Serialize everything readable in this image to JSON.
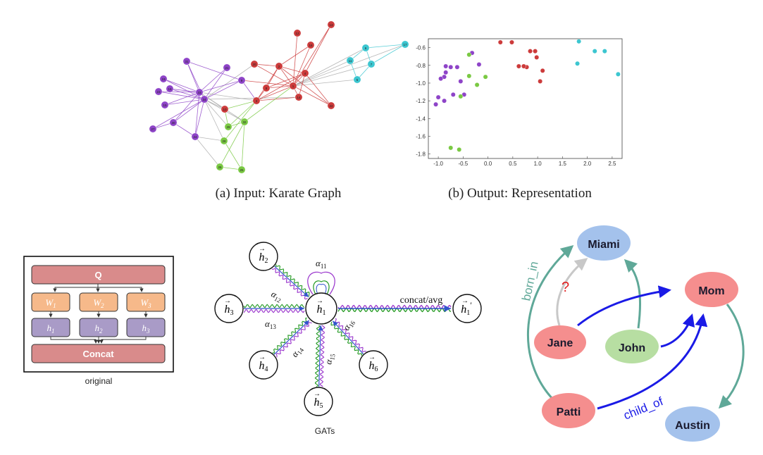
{
  "captions": {
    "karate_input": "(a) Input: Karate Graph",
    "karate_output": "(b) Output: Representation",
    "original": "original",
    "gats": "GATs"
  },
  "karate_graph": {
    "colors": {
      "purple": "#8e44c8",
      "red": "#cc3b3b",
      "green": "#7ac943",
      "cyan": "#3cc6d0",
      "gray": "#aaaaaa"
    },
    "nodes": [
      {
        "id": "13",
        "color": "red"
      },
      {
        "id": "12",
        "color": "red"
      },
      {
        "id": "18",
        "color": "red"
      },
      {
        "id": "20",
        "color": "red"
      },
      {
        "id": "2",
        "color": "red"
      },
      {
        "id": "4",
        "color": "red"
      },
      {
        "id": "1",
        "color": "red"
      },
      {
        "id": "8",
        "color": "red"
      },
      {
        "id": "14",
        "color": "red"
      },
      {
        "id": "22",
        "color": "red"
      },
      {
        "id": "3",
        "color": "red"
      },
      {
        "id": "10",
        "color": "red"
      },
      {
        "id": "6",
        "color": "cyan"
      },
      {
        "id": "17",
        "color": "cyan"
      },
      {
        "id": "11",
        "color": "cyan"
      },
      {
        "id": "7",
        "color": "cyan"
      },
      {
        "id": "5",
        "color": "cyan"
      },
      {
        "id": "21",
        "color": "purple"
      },
      {
        "id": "31",
        "color": "purple"
      },
      {
        "id": "9",
        "color": "purple"
      },
      {
        "id": "19",
        "color": "purple"
      },
      {
        "id": "16",
        "color": "purple"
      },
      {
        "id": "23",
        "color": "purple"
      },
      {
        "id": "33",
        "color": "purple"
      },
      {
        "id": "34",
        "color": "purple"
      },
      {
        "id": "15",
        "color": "purple"
      },
      {
        "id": "27",
        "color": "purple"
      },
      {
        "id": "30",
        "color": "purple"
      },
      {
        "id": "24",
        "color": "purple"
      },
      {
        "id": "32",
        "color": "green"
      },
      {
        "id": "29",
        "color": "green"
      },
      {
        "id": "28",
        "color": "green"
      },
      {
        "id": "25",
        "color": "green"
      },
      {
        "id": "26",
        "color": "green"
      }
    ]
  },
  "chart_data": {
    "type": "scatter",
    "xlim": [
      -1.2,
      2.7
    ],
    "ylim": [
      -1.85,
      -0.5
    ],
    "xticks": [
      "-1.0",
      "-0.5",
      "0.0",
      "0.5",
      "1.0",
      "1.5",
      "2.0",
      "2.5"
    ],
    "yticks": [
      "-0.6",
      "-0.8",
      "-1.0",
      "-1.2",
      "-1.4",
      "-1.6",
      "-1.8"
    ],
    "points": [
      {
        "x": -0.85,
        "y": -0.81,
        "c": "purple"
      },
      {
        "x": -0.75,
        "y": -0.82,
        "c": "purple"
      },
      {
        "x": -0.62,
        "y": -0.82,
        "c": "purple"
      },
      {
        "x": -0.85,
        "y": -0.88,
        "c": "purple"
      },
      {
        "x": -0.88,
        "y": -0.93,
        "c": "purple"
      },
      {
        "x": -0.95,
        "y": -0.95,
        "c": "purple"
      },
      {
        "x": -0.55,
        "y": -0.98,
        "c": "purple"
      },
      {
        "x": -0.18,
        "y": -0.79,
        "c": "purple"
      },
      {
        "x": -0.32,
        "y": -0.66,
        "c": "purple"
      },
      {
        "x": -1.0,
        "y": -1.16,
        "c": "purple"
      },
      {
        "x": -0.88,
        "y": -1.2,
        "c": "purple"
      },
      {
        "x": -1.05,
        "y": -1.24,
        "c": "purple"
      },
      {
        "x": -0.7,
        "y": -1.13,
        "c": "purple"
      },
      {
        "x": -0.48,
        "y": -1.13,
        "c": "purple"
      },
      {
        "x": -0.38,
        "y": -0.68,
        "c": "green"
      },
      {
        "x": -0.38,
        "y": -0.92,
        "c": "green"
      },
      {
        "x": -0.22,
        "y": -1.02,
        "c": "green"
      },
      {
        "x": -0.05,
        "y": -0.93,
        "c": "green"
      },
      {
        "x": -0.55,
        "y": -1.15,
        "c": "green"
      },
      {
        "x": -0.75,
        "y": -1.73,
        "c": "green"
      },
      {
        "x": -0.58,
        "y": -1.75,
        "c": "green"
      },
      {
        "x": 0.25,
        "y": -0.54,
        "c": "red"
      },
      {
        "x": 0.48,
        "y": -0.54,
        "c": "red"
      },
      {
        "x": 0.62,
        "y": -0.81,
        "c": "red"
      },
      {
        "x": 0.78,
        "y": -0.82,
        "c": "red"
      },
      {
        "x": 0.85,
        "y": -0.64,
        "c": "red"
      },
      {
        "x": 0.95,
        "y": -0.64,
        "c": "red"
      },
      {
        "x": 0.98,
        "y": -0.71,
        "c": "red"
      },
      {
        "x": 1.1,
        "y": -0.86,
        "c": "red"
      },
      {
        "x": 1.05,
        "y": -0.98,
        "c": "red"
      },
      {
        "x": 0.72,
        "y": -0.81,
        "c": "red"
      },
      {
        "x": 1.83,
        "y": -0.53,
        "c": "cyan"
      },
      {
        "x": 2.15,
        "y": -0.64,
        "c": "cyan"
      },
      {
        "x": 2.35,
        "y": -0.64,
        "c": "cyan"
      },
      {
        "x": 1.8,
        "y": -0.78,
        "c": "cyan"
      },
      {
        "x": 2.62,
        "y": -0.9,
        "c": "cyan"
      }
    ]
  },
  "attention_block": {
    "q_label": "Q",
    "w_labels": [
      "W",
      "W",
      "W"
    ],
    "w_subs": [
      "1",
      "2",
      "3"
    ],
    "h_labels": [
      "h",
      "h",
      "h"
    ],
    "h_subs": [
      "1",
      "2",
      "3"
    ],
    "concat_label": "Concat",
    "colors": {
      "q": "#d98b8b",
      "w": "#f6b98a",
      "h": "#a99bc7",
      "concat": "#d98b8b"
    }
  },
  "gat": {
    "center": {
      "letter": "h",
      "sub": "1"
    },
    "neighbors": [
      {
        "letter": "h",
        "sub": "2"
      },
      {
        "letter": "h",
        "sub": "3"
      },
      {
        "letter": "h",
        "sub": "4"
      },
      {
        "letter": "h",
        "sub": "5"
      },
      {
        "letter": "h",
        "sub": "6"
      }
    ],
    "output": {
      "letter": "h",
      "sub": "1",
      "prime": "′"
    },
    "alpha_symbol": "α",
    "alphas": [
      "11",
      "12",
      "13",
      "14",
      "15",
      "16"
    ],
    "out_label": "concat/avg"
  },
  "knowledge_graph": {
    "nodes": {
      "miami": {
        "label": "Miami",
        "color": "#a4c2ec"
      },
      "mom": {
        "label": "Mom",
        "color": "#f58e8e"
      },
      "jane": {
        "label": "Jane",
        "color": "#f58e8e"
      },
      "john": {
        "label": "John",
        "color": "#b7dea2"
      },
      "patti": {
        "label": "Patti",
        "color": "#f58e8e"
      },
      "austin": {
        "label": "Austin",
        "color": "#a4c2ec"
      }
    },
    "edge_labels": {
      "born_in": "born_in",
      "child_of": "child_of",
      "question": "?"
    },
    "colors": {
      "born_in": "#5fa898",
      "child_of": "#1a1ae6",
      "unknown": "#c8c8c8",
      "question": "#e02020"
    }
  }
}
